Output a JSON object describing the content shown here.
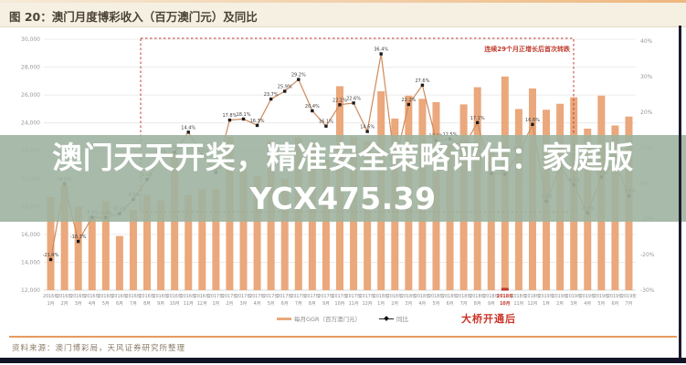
{
  "header": {
    "title": "图 20：澳门月度博彩收入（百万澳门元）及同比"
  },
  "overlay": {
    "text": "澳门天天开奖，精准安全策略评估：家庭版YCX475.39",
    "bg": "rgba(158,178,160,0.9)",
    "text_color": "#ffffff"
  },
  "annotations": {
    "dashed_box_label": "连续29个月正增长后首次转跌",
    "bridge_label": "大桥开通后",
    "highlight_month": "2018年10月"
  },
  "legend": [
    {
      "label": "每月GGR（百万澳门元）",
      "type": "bar"
    },
    {
      "label": "同比",
      "type": "line"
    }
  ],
  "footer": {
    "source": "资料来源：澳门博彩局，天风证券研究所整理"
  },
  "colors": {
    "bar": "#eaa87c",
    "line": "#cf8a5a",
    "marker": "#1c1c1c",
    "point_label": "#3d3d3d",
    "grid": "#ececec",
    "baseline": "#d8d8d8",
    "axis_label": "#999999",
    "x_label": "#8a8a8a",
    "accent_red": "#c0392b"
  },
  "chart_data": {
    "type": "bar",
    "title": "澳门月度博彩收入（百万澳门元）及同比",
    "legend_position": "bottom",
    "grid": true,
    "categories": [
      [
        "2016年",
        "1月"
      ],
      [
        "2016年",
        "2月"
      ],
      [
        "2016年",
        "3月"
      ],
      [
        "2016年",
        "4月"
      ],
      [
        "2016年",
        "5月"
      ],
      [
        "2016年",
        "6月"
      ],
      [
        "2016年",
        "7月"
      ],
      [
        "2016年",
        "8月"
      ],
      [
        "2016年",
        "9月"
      ],
      [
        "2016年",
        "10月"
      ],
      [
        "2016年",
        "11月"
      ],
      [
        "2016年",
        "12月"
      ],
      [
        "2017年",
        "1月"
      ],
      [
        "2017年",
        "2月"
      ],
      [
        "2017年",
        "3月"
      ],
      [
        "2017年",
        "4月"
      ],
      [
        "2017年",
        "5月"
      ],
      [
        "2017年",
        "6月"
      ],
      [
        "2017年",
        "7月"
      ],
      [
        "2017年",
        "8月"
      ],
      [
        "2017年",
        "9月"
      ],
      [
        "2017年",
        "10月"
      ],
      [
        "2017年",
        "11月"
      ],
      [
        "2017年",
        "12月"
      ],
      [
        "2018年",
        "1月"
      ],
      [
        "2018年",
        "2月"
      ],
      [
        "2018年",
        "3月"
      ],
      [
        "2018年",
        "4月"
      ],
      [
        "2018年",
        "5月"
      ],
      [
        "2018年",
        "6月"
      ],
      [
        "2018年",
        "7月"
      ],
      [
        "2018年",
        "8月"
      ],
      [
        "2018年",
        "9月"
      ],
      [
        "2018年",
        "10月"
      ],
      [
        "2018年",
        "11月"
      ],
      [
        "2018年",
        "12月"
      ],
      [
        "2019年",
        "1月"
      ],
      [
        "2019年",
        "2月"
      ],
      [
        "2019年",
        "3月"
      ],
      [
        "2019年",
        "4月"
      ],
      [
        "2019年",
        "5月"
      ],
      [
        "2019年",
        "6月"
      ],
      [
        "2019年",
        "7月"
      ]
    ],
    "series": [
      {
        "name": "每月GGR（百万澳门元）",
        "type": "bar",
        "axis": "left",
        "values": [
          18674,
          19521,
          17980,
          17335,
          18389,
          15885,
          17771,
          18837,
          18435,
          21815,
          18826,
          19230,
          19254,
          22992,
          21232,
          20164,
          22744,
          19992,
          22966,
          22676,
          21354,
          26630,
          23000,
          22700,
          26265,
          24312,
          25952,
          25727,
          25488,
          22490,
          25328,
          26560,
          21952,
          27328,
          24995,
          26468,
          24942,
          25370,
          25840,
          23588,
          25952,
          23812,
          24453
        ]
      },
      {
        "name": "同比",
        "type": "line",
        "axis": "right",
        "values": [
          -21.4,
          -0.1,
          -16.3,
          -9.5,
          -9.6,
          -8.5,
          -4.5,
          1.1,
          7.4,
          8.8,
          14.4,
          8.0,
          3.1,
          17.8,
          18.1,
          16.3,
          23.7,
          25.9,
          29.2,
          20.4,
          16.1,
          22.1,
          22.6,
          14.6,
          36.4,
          5.7,
          22.2,
          27.6,
          12.1,
          12.5,
          10.3,
          17.1,
          2.8,
          2.6,
          8.5,
          16.6,
          -5.0,
          4.4,
          -0.4,
          -8.3,
          1.8,
          5.9,
          -3.5
        ]
      }
    ],
    "left_axis": {
      "min": 12000,
      "max": 30000,
      "step": 2000,
      "tick_labels": [
        "30,000",
        "28,000",
        "26,000",
        "24,000",
        "22,000",
        "20,000",
        "18,000",
        "16,000",
        "14,000",
        "12,000"
      ]
    },
    "right_axis": {
      "min": -30,
      "max": 40,
      "step": 10,
      "tick_labels": [
        "40%",
        "30%",
        "20%",
        "10%",
        "0%",
        "-10%",
        "-20%",
        "-30%"
      ]
    },
    "highlight_index": 33
  }
}
